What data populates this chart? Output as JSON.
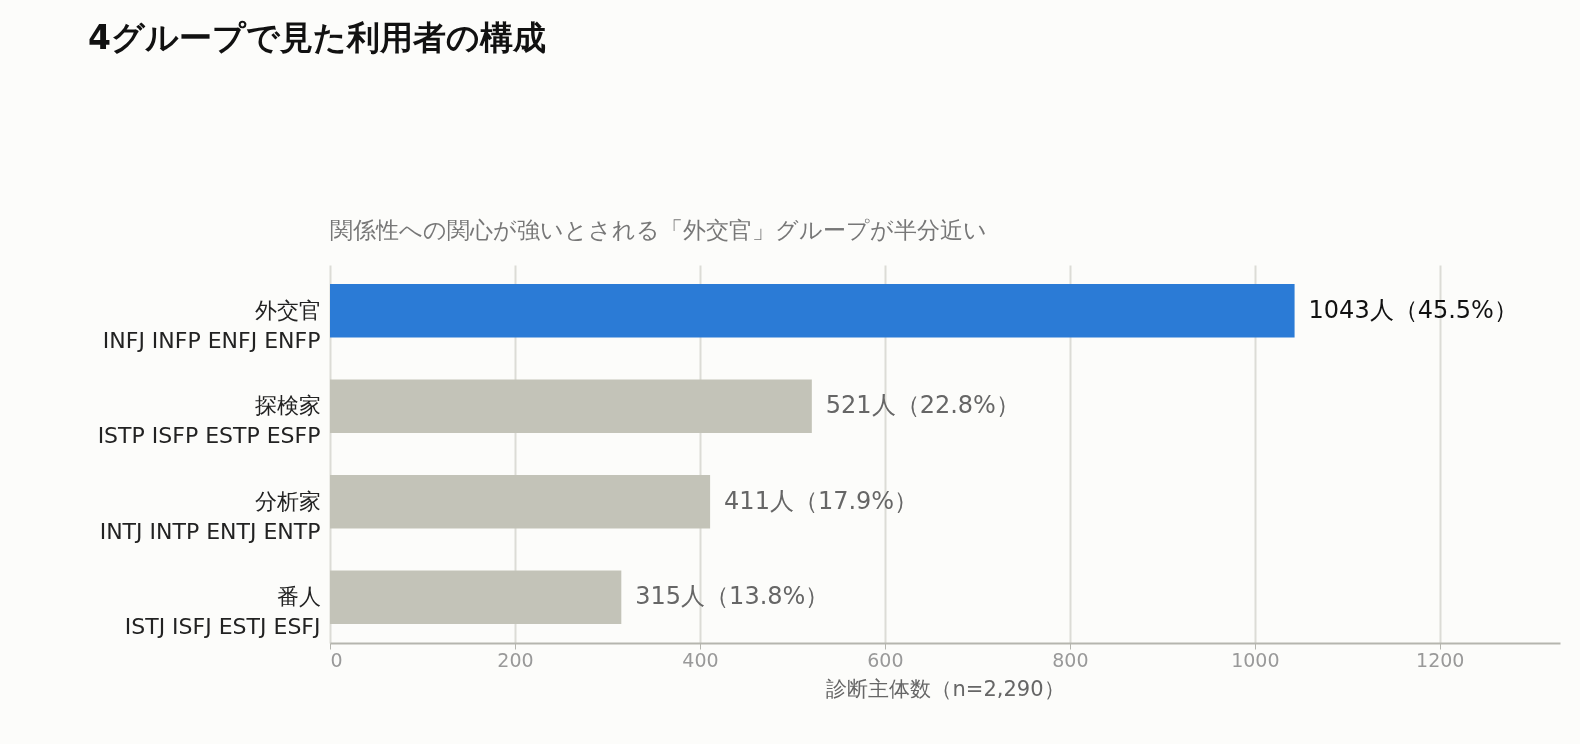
{
  "chart_data": {
    "type": "bar",
    "orientation": "horizontal",
    "title": "4グループで見た利用者の構成",
    "subtitle": "関係性への関心が強いとされる「外交官」グループが半分近い",
    "xlabel": "診断主体数（n=2,290）",
    "categories": [
      "外交官\nINFJ INFP ENFJ ENFP",
      "探検家\nISTP ISFP ESTP ESFP",
      "分析家\nINTJ INTP ENTJ ENTP",
      "番人\nISTJ ISFJ ESTJ ESFJ"
    ],
    "values": [
      1043,
      521,
      411,
      315
    ],
    "value_labels": [
      "1043人（45.5%）",
      "521人（22.8%）",
      "411人（17.9%）",
      "315人（13.8%）"
    ],
    "colors": [
      "#2b7bd6",
      "#c3c3b8",
      "#c3c3b8",
      "#c3c3b8"
    ],
    "xlim": [
      0,
      1330
    ],
    "xticks": [
      0,
      200,
      400,
      600,
      800,
      1000,
      1200
    ],
    "grid": "x"
  }
}
